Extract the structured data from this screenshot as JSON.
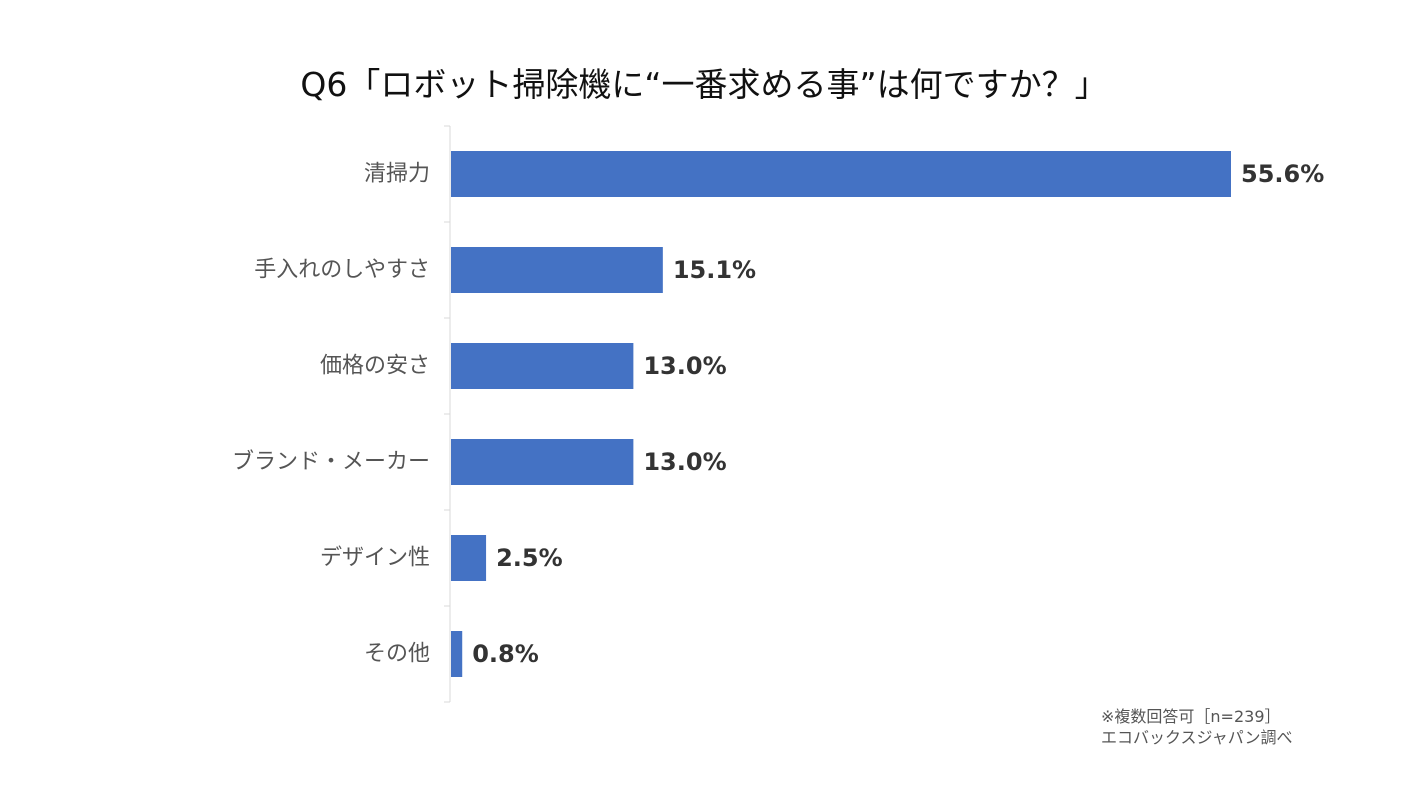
{
  "chart_data": {
    "type": "bar",
    "orientation": "horizontal",
    "title": "Q6「ロボット掃除機に“一番求める事”は何ですか？」",
    "categories": [
      "清掃力",
      "手入れのしやすさ",
      "価格の安さ",
      "ブランド・メーカー",
      "デザイン性",
      "その他"
    ],
    "values": [
      55.6,
      15.1,
      13.0,
      13.0,
      2.5,
      0.8
    ],
    "value_labels": [
      "55.6%",
      "15.1%",
      "13.0%",
      "13.0%",
      "2.5%",
      "0.8%"
    ],
    "unit": "%",
    "xlim": [
      0,
      55.6
    ],
    "grid": false,
    "legend": "none",
    "bar_color": "#4472C4"
  },
  "notes": {
    "line1": "※複数回答可［n=239］",
    "line2": "エコバックスジャパン調べ"
  }
}
